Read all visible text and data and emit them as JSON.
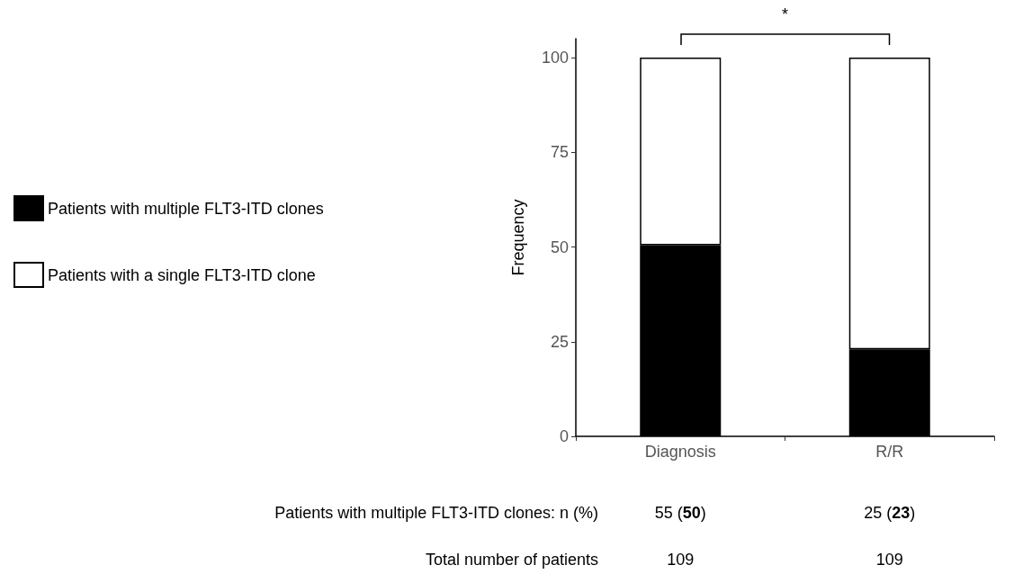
{
  "chart_data": {
    "type": "bar",
    "stacked": true,
    "categories": [
      "Diagnosis",
      "R/R"
    ],
    "series": [
      {
        "name": "Patients with multiple FLT3-ITD clones",
        "color": "#000000",
        "values": [
          50.5,
          23
        ],
        "value_labels": [
          "55 (50)",
          "25 (23)"
        ]
      },
      {
        "name": "Patients with a single FLT3-ITD clone",
        "color": "#ffffff",
        "values": [
          49.5,
          77
        ]
      }
    ],
    "ylabel": "Frequency",
    "ylim": [
      0,
      105
    ],
    "yticks": [
      0,
      25,
      50,
      75,
      100
    ],
    "grid": false,
    "legend": "left",
    "annotations": [
      "*",
      "Patients with multiple FLT3-ITD clones: n (%)",
      "Total number of patients",
      "109",
      "109"
    ]
  }
}
